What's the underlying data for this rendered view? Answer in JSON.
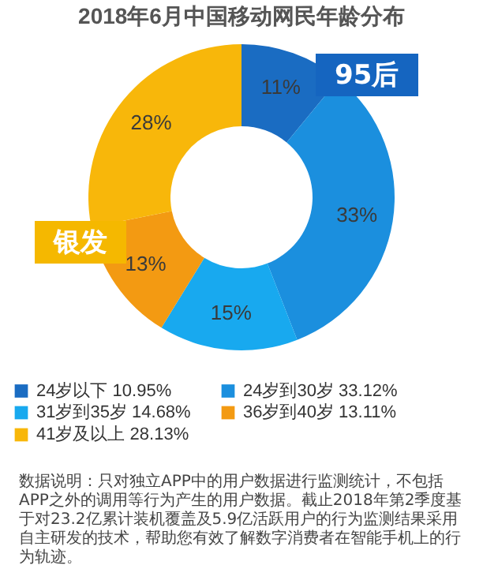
{
  "chart_data": {
    "type": "donut",
    "title": "2018年6月中国移动网民年龄分布",
    "categories": [
      "24岁以下 10.95%",
      "24岁到30岁 33.12%",
      "31岁到35岁 14.68%",
      "36岁到40岁 13.11%",
      "41岁及以上 28.13%"
    ],
    "values": [
      10.95,
      33.12,
      14.68,
      13.11,
      28.13
    ],
    "value_labels": [
      "11%",
      "33%",
      "15%",
      "13%",
      "28%"
    ],
    "colors": [
      "#1a6cc2",
      "#1b8fde",
      "#18a9ef",
      "#f39a12",
      "#f8b70a"
    ],
    "legend": "bottom",
    "annotations": [
      "95后",
      "银发",
      "数据说明：只对独立APP中的用户数据进行监测统计，不包括APP之外的调用等行为产生的用户数据。截止2018年第2季度基于对23.2亿累计装机覆盖及5.9亿活跃用户的行为监测结果采用自主研发的技术，帮助您有效了解数字消费者在智能手机上的行为轨迹。"
    ]
  }
}
